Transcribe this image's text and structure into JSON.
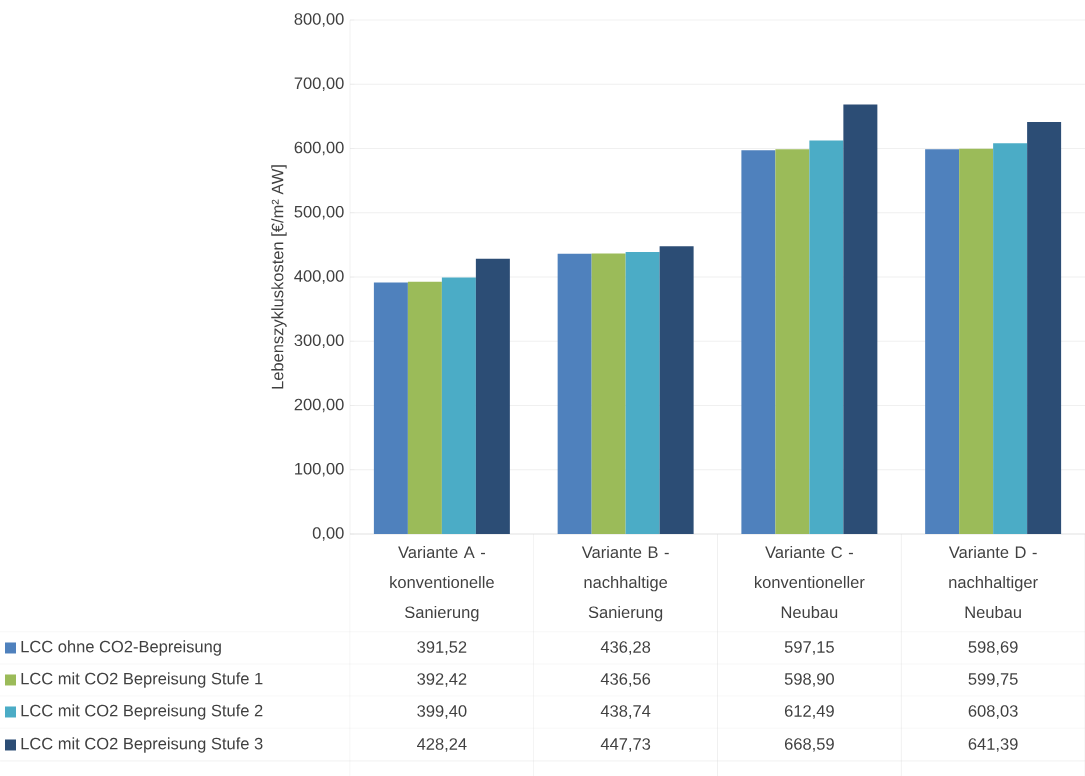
{
  "chart_data": {
    "type": "bar",
    "ylabel": "Lebenszykluskosten [€/m² AW]",
    "categories": [
      "Variante A - konventionelle Sanierung",
      "Variante B - nachhaltige Sanierung",
      "Variante C - konventioneller Neubau",
      "Variante D - nachhaltiger Neubau"
    ],
    "series": [
      {
        "name": "LCC ohne CO2-Bepreisung",
        "color": "#4f81bd",
        "values": [
          391.52,
          436.28,
          597.15,
          598.69
        ],
        "value_labels": [
          "391,52",
          "436,28",
          "597,15",
          "598,69"
        ]
      },
      {
        "name": "LCC mit CO2 Bepreisung Stufe 1",
        "color": "#9bbb59",
        "values": [
          392.42,
          436.56,
          598.9,
          599.75
        ],
        "value_labels": [
          "392,42",
          "436,56",
          "598,90",
          "599,75"
        ]
      },
      {
        "name": "LCC mit CO2 Bepreisung Stufe 2",
        "color": "#4bacc6",
        "values": [
          399.4,
          438.74,
          612.49,
          608.03
        ],
        "value_labels": [
          "399,40",
          "438,74",
          "612,49",
          "608,03"
        ]
      },
      {
        "name": "LCC mit CO2 Bepreisung Stufe 3",
        "color": "#2c4d75",
        "values": [
          428.24,
          447.73,
          668.59,
          641.39
        ],
        "value_labels": [
          "428,24",
          "447,73",
          "668,59",
          "641,39"
        ]
      }
    ],
    "ylim": [
      0,
      800
    ],
    "yticks": [
      {
        "value": 0,
        "label": "0,00"
      },
      {
        "value": 100,
        "label": "100,00"
      },
      {
        "value": 200,
        "label": "200,00"
      },
      {
        "value": 300,
        "label": "300,00"
      },
      {
        "value": 400,
        "label": "400,00"
      },
      {
        "value": 500,
        "label": "500,00"
      },
      {
        "value": 600,
        "label": "600,00"
      },
      {
        "value": 700,
        "label": "700,00"
      },
      {
        "value": 800,
        "label": "800,00"
      }
    ],
    "grid": "y",
    "legend": "bottom"
  }
}
